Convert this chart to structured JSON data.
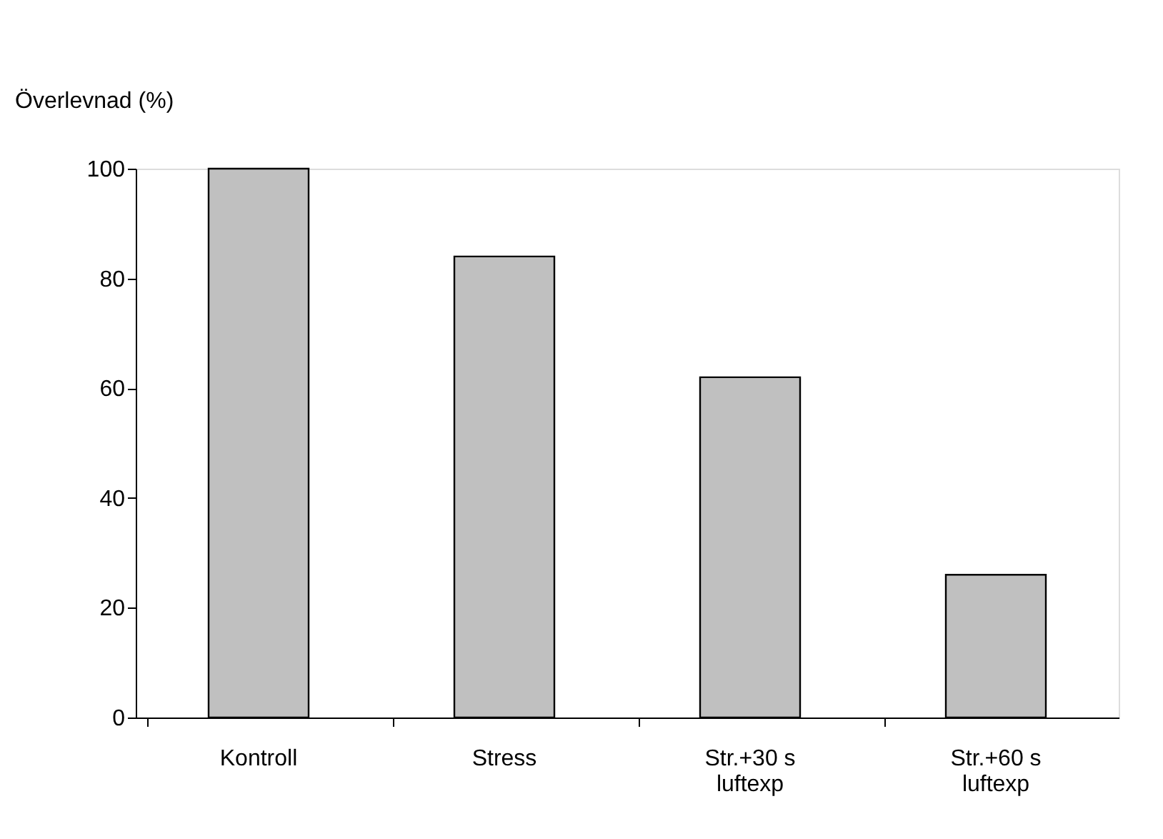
{
  "chart_data": {
    "type": "bar",
    "ylabel": "Överlevnad (%)",
    "categories": [
      "Kontroll",
      "Stress",
      "Str.+30 s luftexp",
      "Str.+60 s luftexp"
    ],
    "values": [
      100,
      84,
      62,
      26
    ],
    "color": "#c0c0c0",
    "ylim": [
      0,
      100
    ],
    "yticks": [
      0,
      20,
      40,
      60,
      80,
      100
    ],
    "grid": false
  }
}
